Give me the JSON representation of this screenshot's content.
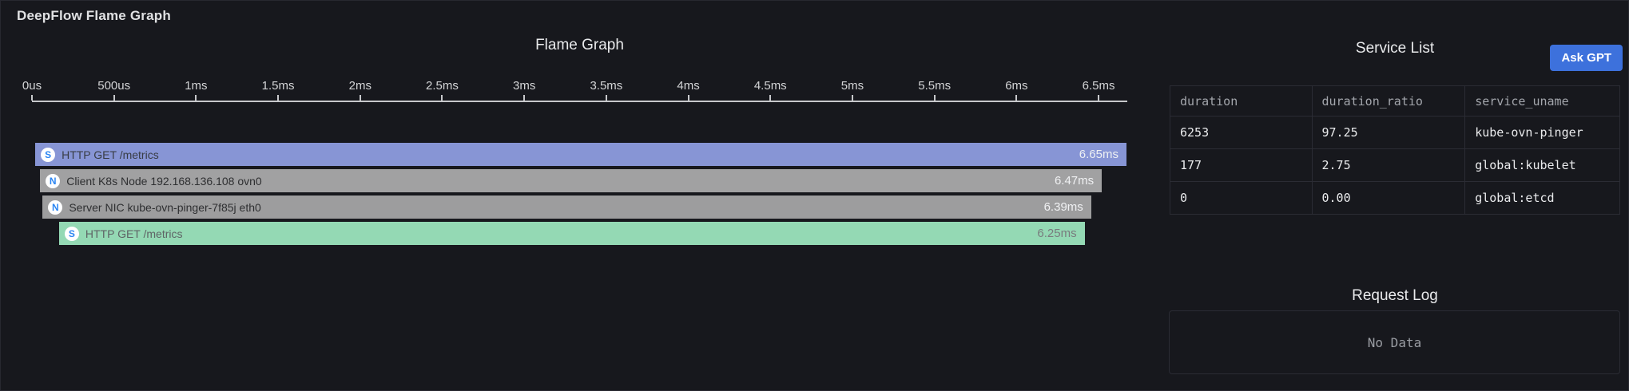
{
  "panel": {
    "title": "DeepFlow Flame Graph"
  },
  "flame": {
    "title": "Flame Graph",
    "axis": {
      "ticks": [
        "0us",
        "500us",
        "1ms",
        "1.5ms",
        "2ms",
        "2.5ms",
        "3ms",
        "3.5ms",
        "4ms",
        "4.5ms",
        "5ms",
        "5.5ms",
        "6ms",
        "6.5ms"
      ],
      "tick_interval_ms": 0.5,
      "max_ms": 6.675,
      "color": "#c7c8cb"
    },
    "spans": [
      {
        "badge": "S",
        "label": "HTTP GET /metrics",
        "duration_label": "6.65ms",
        "start_ms": 0.02,
        "duration_ms": 6.65,
        "bg": "#8795d5",
        "label_color": "#383c44",
        "dur_color": "#eef0f3"
      },
      {
        "badge": "N",
        "label": "Client K8s Node 192.168.136.108 ovn0",
        "duration_label": "6.47ms",
        "start_ms": 0.05,
        "duration_ms": 6.47,
        "bg": "#a1a1a2",
        "label_color": "#2e2f31",
        "dur_color": "#f0f1f3"
      },
      {
        "badge": "N",
        "label": "Server NIC kube-ovn-pinger-7f85j eth0",
        "duration_label": "6.39ms",
        "start_ms": 0.065,
        "duration_ms": 6.39,
        "bg": "#9d9d9e",
        "label_color": "#2e2f31",
        "dur_color": "#f0f1f3"
      },
      {
        "badge": "S",
        "label": "HTTP GET /metrics",
        "duration_label": "6.25ms",
        "start_ms": 0.165,
        "duration_ms": 6.25,
        "bg": "#94d9b4",
        "label_color": "#5e6365",
        "dur_color": "#797c7e"
      }
    ],
    "badge_letter_color": "#2c86f2"
  },
  "service_list": {
    "title": "Service List",
    "columns": [
      "duration",
      "duration_ratio",
      "service_uname"
    ],
    "rows": [
      [
        "6253",
        "97.25",
        "kube-ovn-pinger"
      ],
      [
        "177",
        "2.75",
        "global:kubelet"
      ],
      [
        "0",
        "0.00",
        "global:etcd"
      ]
    ]
  },
  "ask_gpt": {
    "label": "Ask GPT",
    "color": "#3d71dc"
  },
  "request_log": {
    "title": "Request Log",
    "empty_text": "No Data"
  },
  "chart_data": [
    {
      "type": "flamegraph",
      "title": "Flame Graph",
      "x_axis": {
        "unit": "time",
        "min_ms": 0,
        "max_ms": 6.675,
        "tick_labels": [
          "0us",
          "500us",
          "1ms",
          "1.5ms",
          "2ms",
          "2.5ms",
          "3ms",
          "3.5ms",
          "4ms",
          "4.5ms",
          "5ms",
          "5.5ms",
          "6ms",
          "6.5ms"
        ]
      },
      "spans": [
        {
          "depth": 0,
          "kind": "S",
          "label": "HTTP GET /metrics",
          "start_ms": 0.02,
          "duration_ms": 6.65,
          "duration_label": "6.65ms"
        },
        {
          "depth": 1,
          "kind": "N",
          "label": "Client K8s Node 192.168.136.108 ovn0",
          "start_ms": 0.05,
          "duration_ms": 6.47,
          "duration_label": "6.47ms"
        },
        {
          "depth": 2,
          "kind": "N",
          "label": "Server NIC kube-ovn-pinger-7f85j eth0",
          "start_ms": 0.065,
          "duration_ms": 6.39,
          "duration_label": "6.39ms"
        },
        {
          "depth": 3,
          "kind": "S",
          "label": "HTTP GET /metrics",
          "start_ms": 0.165,
          "duration_ms": 6.25,
          "duration_label": "6.25ms"
        }
      ]
    },
    {
      "type": "table",
      "title": "Service List",
      "columns": [
        "duration",
        "duration_ratio",
        "service_uname"
      ],
      "rows": [
        [
          "6253",
          "97.25",
          "kube-ovn-pinger"
        ],
        [
          "177",
          "2.75",
          "global:kubelet"
        ],
        [
          "0",
          "0.00",
          "global:etcd"
        ]
      ]
    }
  ]
}
